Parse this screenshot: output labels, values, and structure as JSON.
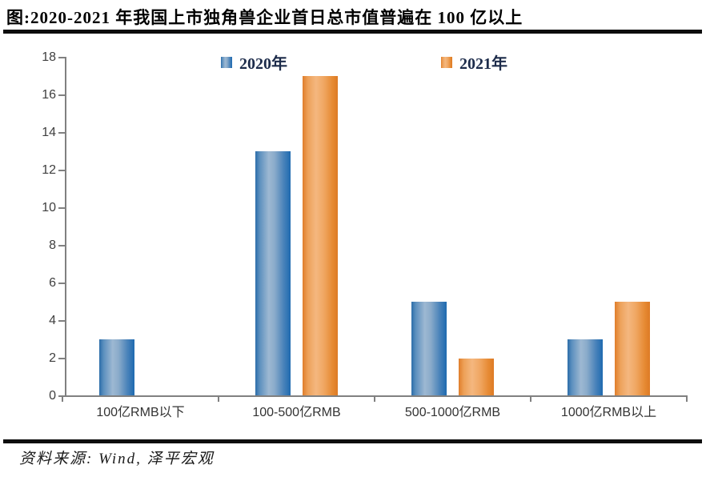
{
  "title": "图:2020-2021 年我国上市独角兽企业首日总市值普遍在 100 亿以上",
  "source": "资料来源: Wind, 泽平宏观",
  "colors": {
    "series_2020": "#3b79b6",
    "series_2021": "#ec8f3d",
    "axis": "#808080",
    "axis_text": "#3f3f3f",
    "legend_text": "#1c2b4a"
  },
  "chart_data": {
    "type": "bar",
    "categories": [
      "100亿RMB以下",
      "100-500亿RMB",
      "500-1000亿RMB",
      "1000亿RMB以上"
    ],
    "series": [
      {
        "name": "2020年",
        "values": [
          3,
          13,
          5,
          3
        ],
        "color": "#3b79b6"
      },
      {
        "name": "2021年",
        "values": [
          0,
          17,
          2,
          5
        ],
        "color": "#ec8f3d"
      }
    ],
    "title": "",
    "xlabel": "",
    "ylabel": "",
    "ylim": [
      0,
      18
    ],
    "yticks": [
      0,
      2,
      4,
      6,
      8,
      10,
      12,
      14,
      16,
      18
    ],
    "grid": false,
    "legend_position": "top"
  }
}
